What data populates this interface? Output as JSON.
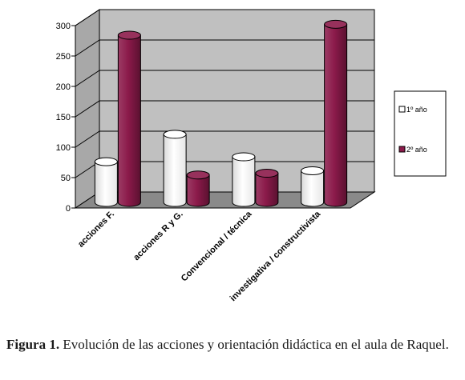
{
  "chart_data": {
    "type": "bar",
    "style": "3d-cylinder",
    "categories": [
      "acciones F.",
      "acciones R y G.",
      "Convencional / técnica",
      "investigativa / constructivista"
    ],
    "series": [
      {
        "name": "1º año",
        "color": "#ffffff",
        "values": [
          67,
          112,
          75,
          52
        ]
      },
      {
        "name": "2º año",
        "color": "#8b1a4a",
        "values": [
          275,
          45,
          48,
          293
        ]
      }
    ],
    "ylim": [
      0,
      300
    ],
    "yticks": [
      0,
      50,
      100,
      150,
      200,
      250,
      300
    ],
    "grid": true,
    "legend_position": "right",
    "wall_color": "#c0c0c0",
    "floor_color": "#8a8a8a"
  },
  "caption": {
    "label": "Figura 1.",
    "text": " Evolución de las acciones y orientación didáctica en el aula de Raquel."
  }
}
